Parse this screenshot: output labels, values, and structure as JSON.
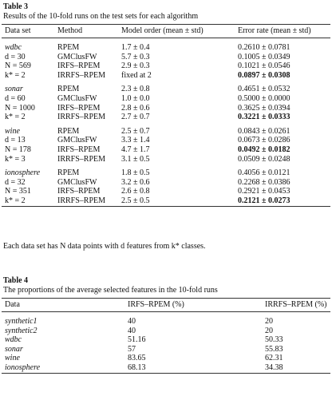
{
  "table3": {
    "label": "Table 3",
    "title": "Results of the 10-fold runs on the test sets for each algorithm",
    "header": [
      "Data set",
      "Method",
      "Model order (mean ± std)",
      "Error rate (mean ± std)"
    ],
    "rows": [
      [
        "wdbc",
        "RPEM",
        "1.7 ± 0.4",
        "0.2610 ± 0.0781"
      ],
      [
        "d = 30",
        "GMClusFW",
        "5.7 ± 0.3",
        "0.1005 ± 0.0349"
      ],
      [
        "N = 569",
        "IRFS–RPEM",
        "2.9 ± 0.3",
        "0.1021 ± 0.0546"
      ],
      [
        "k* = 2",
        "IRRFS–RPEM",
        "fixed at 2",
        "0.0897 ± 0.0308"
      ],
      [
        "sonar",
        "RPEM",
        "2.3 ± 0.8",
        "0.4651 ± 0.0532"
      ],
      [
        "d = 60",
        "GMClusFW",
        "1.0 ± 0.0",
        "0.5000 ± 0.0000"
      ],
      [
        "N = 1000",
        "IRFS–RPEM",
        "2.8 ± 0.6",
        "0.3625 ± 0.0394"
      ],
      [
        "k* = 2",
        "IRRFS–RPEM",
        "2.7 ± 0.7",
        "0.3221 ± 0.0333"
      ],
      [
        "wine",
        "RPEM",
        "2.5 ± 0.7",
        "0.0843 ± 0.0261"
      ],
      [
        "d = 13",
        "GMClusFW",
        "3.3 ± 1.4",
        "0.0673 ± 0.0286"
      ],
      [
        "N = 178",
        "IRFS–RPEM",
        "4.7 ± 1.7",
        "0.0492 ± 0.0182"
      ],
      [
        "k* = 3",
        "IRRFS–RPEM",
        "3.1 ± 0.5",
        "0.0509 ± 0.0248"
      ],
      [
        "ionosphere",
        "RPEM",
        "1.8 ± 0.5",
        "0.4056 ± 0.0121"
      ],
      [
        "d = 32",
        "GMClusFW",
        "3.2 ± 0.6",
        "0.2268 ± 0.0386"
      ],
      [
        "N = 351",
        "IRFS–RPEM",
        "2.6 ± 0.8",
        "0.2921 ± 0.0453"
      ],
      [
        "k* = 2",
        "IRRFS–RPEM",
        "2.5 ± 0.5",
        "0.2121 ± 0.0273"
      ]
    ],
    "note": "Each data set has N data points with d features from k* classes."
  },
  "table4": {
    "label": "Table 4",
    "title": "The proportions of the average selected features in the 10-fold runs",
    "header": [
      "Data",
      "IRFS–RPEM (%)",
      "IRRFS–RPEM (%)"
    ],
    "rows": [
      [
        "synthetic1",
        "40",
        "20"
      ],
      [
        "synthetic2",
        "40",
        "20"
      ],
      [
        "wdbc",
        "51.16",
        "50.33"
      ],
      [
        "sonar",
        "57",
        "55.83"
      ],
      [
        "wine",
        "83.65",
        "62.31"
      ],
      [
        "ionosphere",
        "68.13",
        "34.38"
      ]
    ]
  }
}
